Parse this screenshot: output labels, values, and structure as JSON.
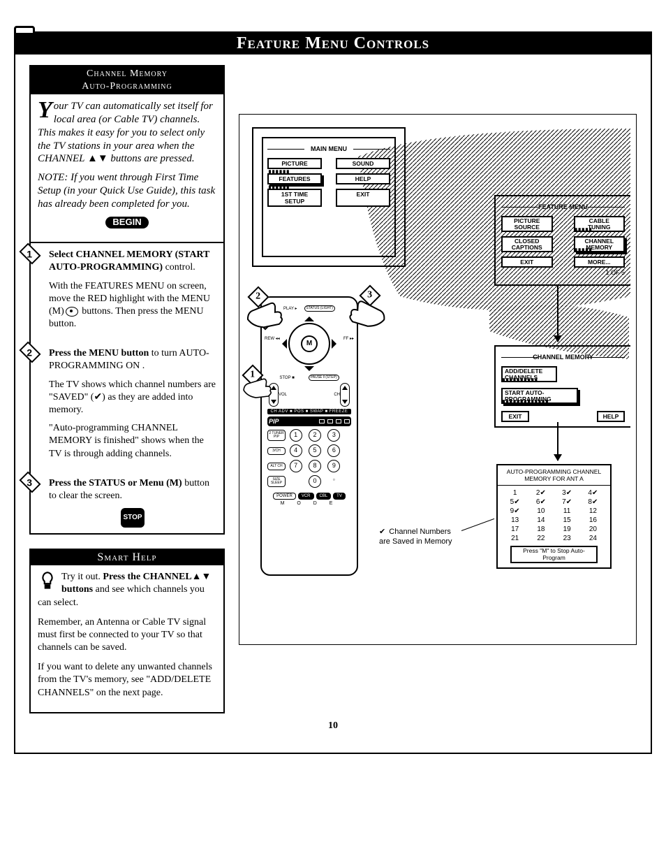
{
  "page": {
    "title": "Feature Menu Controls",
    "number": "10"
  },
  "module": {
    "head1": "Channel Memory",
    "head2": "Auto-Programming",
    "intro1": "Your TV can automatically set itself for local area (or Cable TV) channels. This makes it easy for you to select only the TV stations in your area when the CHANNEL ▲▼ buttons are pressed.",
    "intro2": "NOTE: If you went through First Time Setup (in your Quick Use Guide), this task has already been completed for you.",
    "begin": "BEGIN",
    "stop": "STOP"
  },
  "steps": {
    "s1": {
      "bold": "Select CHANNEL MEMORY (START AUTO-PROGRAMMING)",
      "rest": " control.",
      "p2a": "With the FEATURES MENU on screen, move the RED highlight with the MENU (M)",
      "p2b": " buttons. Then press the MENU button."
    },
    "s2": {
      "bold": "Press the MENU button",
      "rest": " to turn AUTO-PROGRAMMING ON .",
      "p2": "The TV shows which channel numbers are \"SAVED\" (✔) as they are added into memory.",
      "p3": "\"Auto-programming CHANNEL MEMORY is finished\" shows when the TV is through adding channels."
    },
    "s3": {
      "bold": "Press the STATUS or Menu (M)",
      "rest": " button to clear the screen."
    }
  },
  "help": {
    "title": "Smart Help",
    "p1a": "Try it out. ",
    "p1b": "Press the CHANNEL▲▼ buttons",
    "p1c": " and see which channels you can select.",
    "p2": "Remember, an Antenna or Cable TV signal must first be connected to your TV so that channels can be saved.",
    "p3": "If you want to delete any unwanted channels from the TV's memory, see \"ADD/DELETE CHANNELS\" on the next page."
  },
  "mainMenu": {
    "title": "MAIN MENU",
    "items": {
      "a": "PICTURE",
      "b": "SOUND",
      "c": "FEATURES",
      "d": "HELP",
      "e": "1ST TIME SETUP",
      "f": "EXIT"
    }
  },
  "featureMenu": {
    "title": "FEATURE MENU",
    "a": "PICTURE SOURCE",
    "b": "CABLE TUNING",
    "c": "CLOSED CAPTIONS",
    "d": "CHANNEL MEMORY",
    "e": "EXIT",
    "f": "MORE...",
    "note": "1 OF 5"
  },
  "chmemMenu": {
    "title": "CHANNEL MEMORY",
    "a": "ADD/DELETE CHANNELS",
    "b": "START AUTO-PROGRAMMING",
    "c": "EXIT",
    "d": "HELP"
  },
  "result": {
    "head": "AUTO-PROGRAMMING CHANNEL MEMORY FOR ANT A",
    "foot": "Press \"M\" to Stop Auto-Program",
    "grid": [
      [
        "1",
        "2✔",
        "3✔",
        "4✔"
      ],
      [
        "5✔",
        "6✔",
        "7✔",
        "8✔"
      ],
      [
        "9✔",
        "10",
        "11",
        "12"
      ],
      [
        "13",
        "14",
        "15",
        "16"
      ],
      [
        "17",
        "18",
        "19",
        "20"
      ],
      [
        "21",
        "22",
        "23",
        "24"
      ]
    ]
  },
  "savedNote": "Channel Numbers are Saved in Memory",
  "remote": {
    "play": "PLAY ▸",
    "status": "STATUS (LIGHT)",
    "rew": "REW ◂◂",
    "m": "M",
    "ff": "FF ▸▸",
    "stop": "STOP ■",
    "pause": "PAUSE ‖ (STEP)",
    "stripLabels": "CH ADV ■ POS ■ SWAP ■ FREEZE",
    "pip": "PIP",
    "modeLabel": "M   O   D   E",
    "bottom": {
      "power": "POWER",
      "vcr": "VCR",
      "cbl": "CBL",
      "tv": "TV"
    },
    "side": {
      "a": "2 TUNER PIP",
      "b": "3/CH",
      "c": "ALT CH",
      "d": "SIZE SLEEP"
    },
    "vol": "VOL",
    "ch": "CH"
  }
}
